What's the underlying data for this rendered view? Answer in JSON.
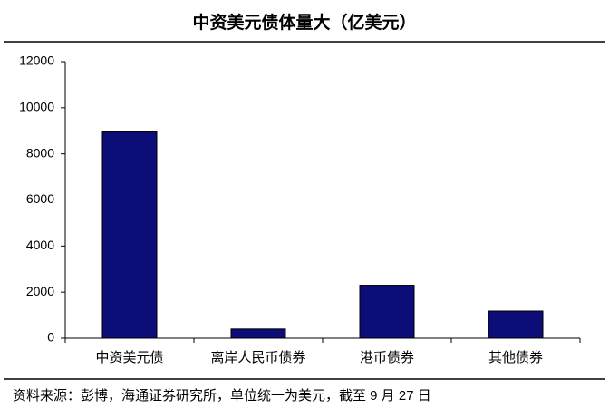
{
  "chart_data": {
    "type": "bar",
    "title": "中资美元债体量大（亿美元）",
    "categories": [
      "中资美元债",
      "离岸人民币债券",
      "港币债券",
      "其他债券"
    ],
    "values": [
      8950,
      400,
      2300,
      1180
    ],
    "color": "#0d0d78",
    "ylim": [
      0,
      12000
    ],
    "yticks": [
      0,
      2000,
      4000,
      6000,
      8000,
      10000,
      12000
    ],
    "grid": false,
    "source": "资料来源：彭博，海通证券研究所，单位统一为美元，截至 9 月 27 日"
  }
}
